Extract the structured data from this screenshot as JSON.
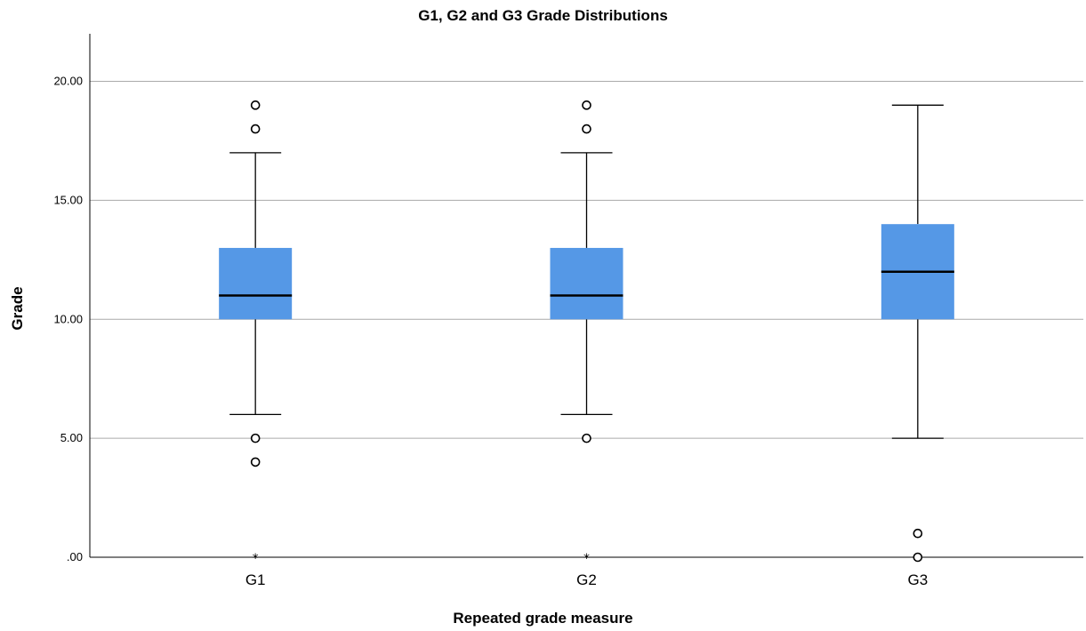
{
  "chart_data": {
    "type": "boxplot",
    "title": "G1, G2 and G3 Grade Distributions",
    "xlabel": "Repeated grade measure",
    "ylabel": "Grade",
    "ylim": [
      0,
      22
    ],
    "yticks": [
      0,
      5,
      10,
      15,
      20
    ],
    "ytick_labels": [
      ".00",
      "5.00",
      "10.00",
      "15.00",
      "20.00"
    ],
    "grid": true,
    "box_color": "#5598e6",
    "categories": [
      "G1",
      "G2",
      "G3"
    ],
    "boxes": [
      {
        "category": "G1",
        "whisker_low": 6,
        "q1": 10,
        "median": 11,
        "q3": 13,
        "whisker_high": 17,
        "outliers": [
          19,
          18,
          5,
          4
        ],
        "extremes": [
          0
        ]
      },
      {
        "category": "G2",
        "whisker_low": 6,
        "q1": 10,
        "median": 11,
        "q3": 13,
        "whisker_high": 17,
        "outliers": [
          19,
          18,
          5
        ],
        "extremes": [
          0
        ]
      },
      {
        "category": "G3",
        "whisker_low": 5,
        "q1": 10,
        "median": 12,
        "q3": 14,
        "whisker_high": 19,
        "outliers": [
          1,
          0
        ],
        "extremes": []
      }
    ]
  }
}
